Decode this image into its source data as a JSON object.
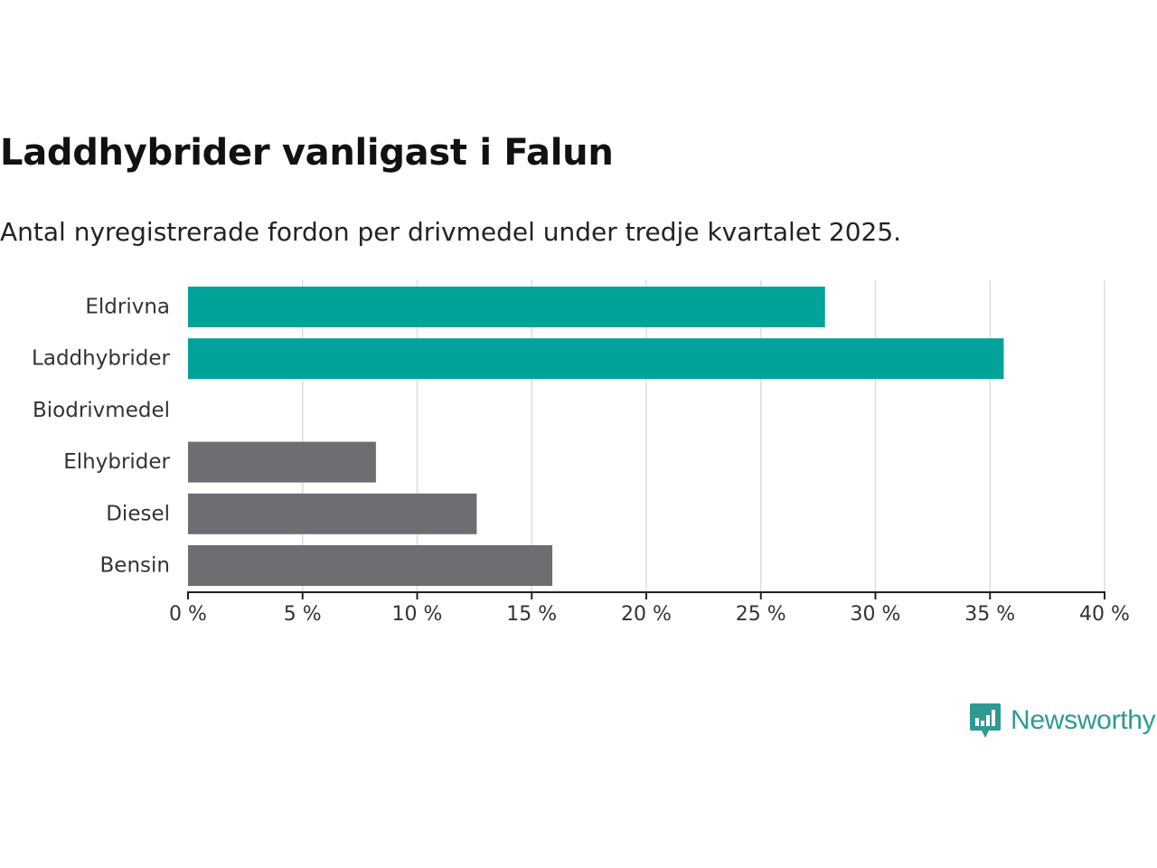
{
  "colors": {
    "highlight": "#00A39A",
    "neutral": "#6E6D72",
    "grid": "#dddddd",
    "axis": "#222222",
    "logo": "#2f9a92"
  },
  "logo": {
    "icon": "newsworthy-chart-bubble-icon",
    "text": "Newsworthy"
  },
  "chart_data": {
    "type": "bar",
    "orientation": "horizontal",
    "title": "Laddhybrider vanligast i Falun",
    "subtitle": "Antal nyregistrerade fordon per drivmedel under tredje kvartalet 2025.",
    "categories": [
      "Eldrivna",
      "Laddhybrider",
      "Biodrivmedel",
      "Elhybrider",
      "Diesel",
      "Bensin"
    ],
    "values": [
      27.8,
      35.6,
      0,
      8.2,
      12.6,
      15.9
    ],
    "bar_colors": [
      "#00A39A",
      "#00A39A",
      "#6E6D72",
      "#6E6D72",
      "#6E6D72",
      "#6E6D72"
    ],
    "xlim": [
      0,
      40
    ],
    "xticks": [
      0,
      5,
      10,
      15,
      20,
      25,
      30,
      35,
      40
    ],
    "xtick_labels": [
      "0 %",
      "5 %",
      "10 %",
      "15 %",
      "20 %",
      "25 %",
      "30 %",
      "35 %",
      "40 %"
    ],
    "grid": true,
    "legend": "none"
  }
}
